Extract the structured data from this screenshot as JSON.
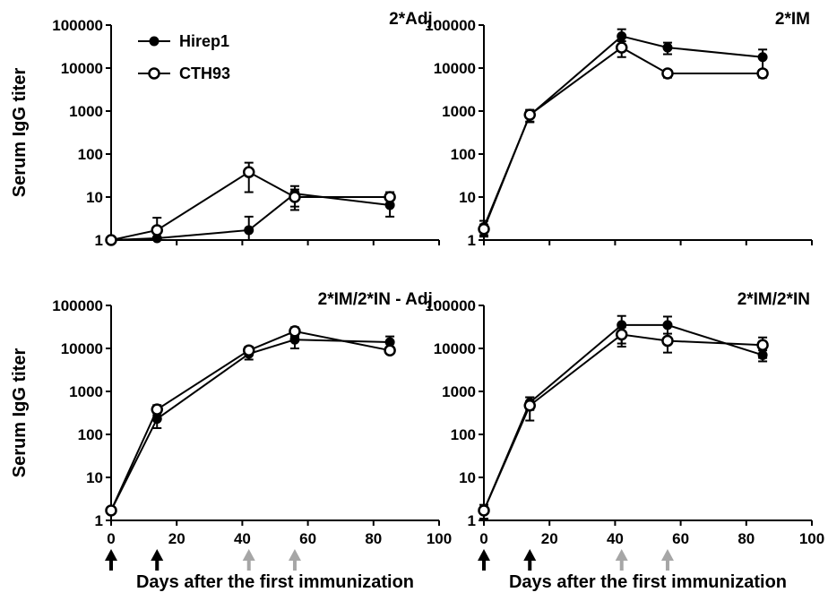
{
  "figure": {
    "ylabel": "Serum IgG titer",
    "xlabel": "Days after the first immunization",
    "legend": [
      {
        "name": "Hirep1",
        "marker": "filled-circle"
      },
      {
        "name": "CTH93",
        "marker": "open-circle"
      }
    ],
    "colors": {
      "ink": "#000000",
      "boost_arrow_black": "#000000",
      "boost_arrow_gray": "#a6a6a6"
    }
  },
  "chart_data": [
    {
      "type": "line",
      "title": "2*Adj.",
      "xlabel": "",
      "ylabel": "Serum IgG titer",
      "xlim": [
        0,
        100
      ],
      "ylim": [
        1,
        100000
      ],
      "yscale": "log",
      "x_ticks": [
        "0",
        "20",
        "40",
        "60",
        "80",
        "100"
      ],
      "y_ticks": [
        "1",
        "10",
        "100",
        "1000",
        "10000",
        "100000"
      ],
      "show_x_tick_labels": false,
      "legend": "top-left",
      "series": [
        {
          "name": "Hirep1",
          "x": [
            0,
            14,
            42,
            56,
            85
          ],
          "y": [
            1,
            1.1,
            1.7,
            12,
            6.5
          ],
          "err": [
            0,
            0,
            1.8,
            6,
            3
          ]
        },
        {
          "name": "CTH93",
          "x": [
            0,
            14,
            42,
            56,
            85
          ],
          "y": [
            1,
            1.7,
            38,
            10,
            10
          ],
          "err": [
            0,
            1.6,
            25,
            5,
            3
          ]
        }
      ],
      "arrows": []
    },
    {
      "type": "line",
      "title": "2*IM",
      "xlabel": "",
      "ylabel": "",
      "xlim": [
        0,
        100
      ],
      "ylim": [
        1,
        100000
      ],
      "yscale": "log",
      "x_ticks": [
        "0",
        "20",
        "40",
        "60",
        "80",
        "100"
      ],
      "y_ticks": [
        "1",
        "10",
        "100",
        "1000",
        "10000",
        "100000"
      ],
      "show_x_tick_labels": false,
      "series": [
        {
          "name": "Hirep1",
          "x": [
            0,
            14,
            42,
            56,
            85
          ],
          "y": [
            2,
            800,
            55000,
            30000,
            18000
          ],
          "err": [
            0.8,
            250,
            25000,
            9000,
            9000
          ]
        },
        {
          "name": "CTH93",
          "x": [
            0,
            14,
            42,
            56,
            85
          ],
          "y": [
            1.8,
            820,
            30000,
            7500,
            7500
          ],
          "err": [
            0.5,
            250,
            12000,
            1500,
            1500
          ]
        }
      ],
      "arrows": []
    },
    {
      "type": "line",
      "title": "2*IM/2*IN - Adj.",
      "xlabel": "Days after the first immunization",
      "ylabel": "Serum IgG titer",
      "xlim": [
        0,
        100
      ],
      "ylim": [
        1,
        100000
      ],
      "yscale": "log",
      "x_ticks": [
        "0",
        "20",
        "40",
        "60",
        "80",
        "100"
      ],
      "y_ticks": [
        "1",
        "10",
        "100",
        "1000",
        "10000",
        "100000"
      ],
      "show_x_tick_labels": true,
      "series": [
        {
          "name": "Hirep1",
          "x": [
            0,
            14,
            42,
            56,
            85
          ],
          "y": [
            1.7,
            230,
            7500,
            16000,
            14000
          ],
          "err": [
            0,
            90,
            2000,
            6000,
            5000
          ]
        },
        {
          "name": "CTH93",
          "x": [
            0,
            14,
            42,
            56,
            85
          ],
          "y": [
            1.7,
            380,
            9000,
            25000,
            9000
          ],
          "err": [
            0,
            100,
            2000,
            6000,
            1500
          ]
        }
      ],
      "arrows": [
        {
          "x": 0,
          "color": "black"
        },
        {
          "x": 14,
          "color": "black"
        },
        {
          "x": 42,
          "color": "gray"
        },
        {
          "x": 56,
          "color": "gray"
        }
      ]
    },
    {
      "type": "line",
      "title": "2*IM/2*IN",
      "xlabel": "Days after the first immunization",
      "ylabel": "",
      "xlim": [
        0,
        100
      ],
      "ylim": [
        1,
        100000
      ],
      "yscale": "log",
      "x_ticks": [
        "0",
        "20",
        "40",
        "60",
        "80",
        "100"
      ],
      "y_ticks": [
        "1",
        "10",
        "100",
        "1000",
        "10000",
        "100000"
      ],
      "show_x_tick_labels": true,
      "series": [
        {
          "name": "Hirep1",
          "x": [
            0,
            14,
            42,
            56,
            85
          ],
          "y": [
            1.7,
            550,
            35000,
            35000,
            7000
          ],
          "err": [
            0,
            180,
            22000,
            20000,
            2000
          ]
        },
        {
          "name": "CTH93",
          "x": [
            0,
            14,
            42,
            56,
            85
          ],
          "y": [
            1.7,
            470,
            21000,
            15000,
            12000
          ],
          "err": [
            0.6,
            260,
            10000,
            7000,
            6000
          ]
        }
      ],
      "arrows": [
        {
          "x": 0,
          "color": "black"
        },
        {
          "x": 14,
          "color": "black"
        },
        {
          "x": 42,
          "color": "gray"
        },
        {
          "x": 56,
          "color": "gray"
        }
      ]
    }
  ]
}
